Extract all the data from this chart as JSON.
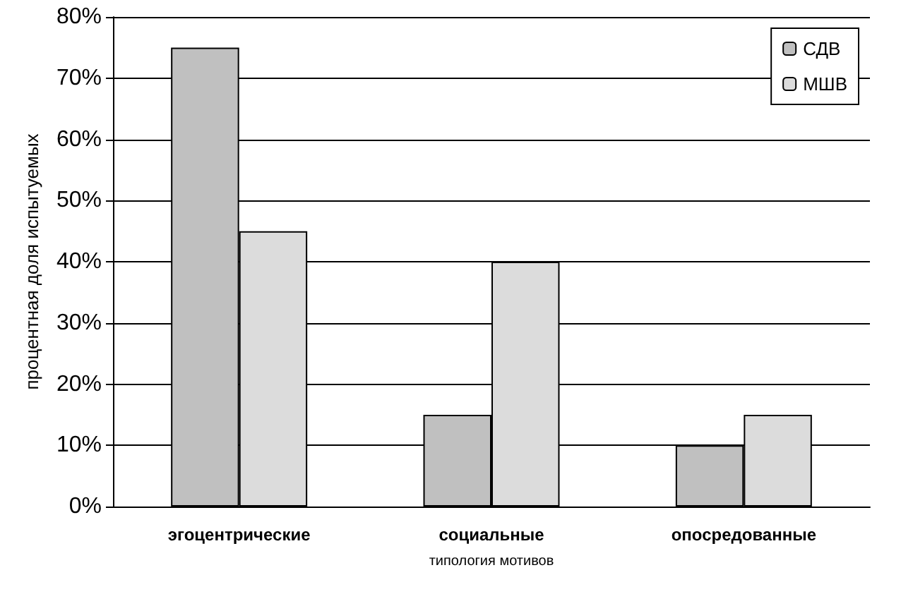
{
  "chart_data": {
    "type": "bar",
    "xlabel": "типология мотивов",
    "ylabel": "процентная доля испытуемых",
    "categories": [
      "эгоцентрические",
      "социальные",
      "опосредованные"
    ],
    "series": [
      {
        "name": "СДВ",
        "color": "#c0c0c0",
        "values": [
          75,
          15,
          10
        ]
      },
      {
        "name": "МШВ",
        "color": "#dcdcdc",
        "values": [
          45,
          40,
          15
        ]
      }
    ],
    "ylim": [
      0,
      80
    ],
    "yticks": [
      {
        "value": 0,
        "label": "0%"
      },
      {
        "value": 10,
        "label": "10%"
      },
      {
        "value": 20,
        "label": "20%"
      },
      {
        "value": 30,
        "label": "30%"
      },
      {
        "value": 40,
        "label": "40%"
      },
      {
        "value": 50,
        "label": "50%"
      },
      {
        "value": 60,
        "label": "60%"
      },
      {
        "value": 70,
        "label": "70%"
      },
      {
        "value": 80,
        "label": "80%"
      }
    ],
    "grid": "y",
    "legend": "top right"
  }
}
